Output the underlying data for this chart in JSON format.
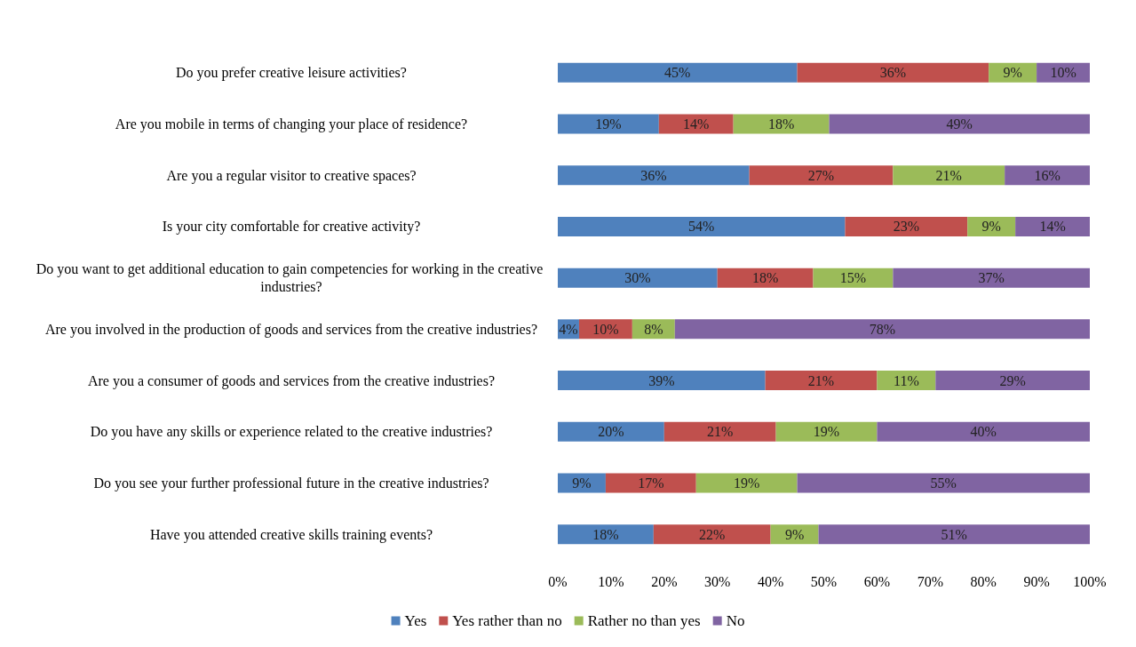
{
  "chart_data": {
    "type": "bar",
    "orientation": "horizontal",
    "stacked": true,
    "legend": "bottom",
    "grid": false,
    "categories": [
      "Do you prefer creative leisure activities?",
      "Are you mobile in terms of changing your place of residence?",
      "Are you a regular visitor to creative spaces?",
      "Is your city comfortable for creative activity?",
      "Do you want to get additional education to gain competencies for working in the creative industries?",
      "Are you involved in the production of goods and services from the creative industries?",
      "Are you a consumer of goods and services from the creative industries?",
      "Do you have any skills or experience related to the creative industries?",
      "Do you see your further professional future in the creative industries?",
      "Have you attended creative skills training events?"
    ],
    "xlim": [
      0,
      100
    ],
    "xticks": [
      {
        "value": 0,
        "label": "0%"
      },
      {
        "value": 10,
        "label": "10%"
      },
      {
        "value": 20,
        "label": "20%"
      },
      {
        "value": 30,
        "label": "30%"
      },
      {
        "value": 40,
        "label": "40%"
      },
      {
        "value": 50,
        "label": "50%"
      },
      {
        "value": 60,
        "label": "60%"
      },
      {
        "value": 70,
        "label": "70%"
      },
      {
        "value": 80,
        "label": "80%"
      },
      {
        "value": 90,
        "label": "90%"
      },
      {
        "value": 100,
        "label": "100%"
      }
    ],
    "series": [
      {
        "name": "Yes",
        "color": "#4f81bd",
        "values": [
          45,
          19,
          36,
          54,
          30,
          4,
          39,
          20,
          9,
          18
        ],
        "value_labels": [
          "45%",
          "19%",
          "36%",
          "54%",
          "30%",
          "4%",
          "39%",
          "20%",
          "9%",
          "18%"
        ]
      },
      {
        "name": "Yes rather than no",
        "color": "#c0504d",
        "values": [
          36,
          14,
          27,
          23,
          18,
          10,
          21,
          21,
          17,
          22
        ],
        "value_labels": [
          "36%",
          "14%",
          "27%",
          "23%",
          "18%",
          "10%",
          "21%",
          "21%",
          "17%",
          "22%"
        ]
      },
      {
        "name": "Rather no than yes",
        "color": "#9bbb59",
        "values": [
          9,
          18,
          21,
          9,
          15,
          8,
          11,
          19,
          19,
          9
        ],
        "value_labels": [
          "9%",
          "18%",
          "21%",
          "9%",
          "15%",
          "8%",
          "11%",
          "19%",
          "19%",
          "9%"
        ]
      },
      {
        "name": "No",
        "color": "#8064a2",
        "values": [
          10,
          49,
          16,
          14,
          37,
          78,
          29,
          40,
          55,
          51
        ],
        "value_labels": [
          "10%",
          "49%",
          "16%",
          "14%",
          "37%",
          "78%",
          "29%",
          "40%",
          "55%",
          "51%"
        ]
      }
    ]
  }
}
